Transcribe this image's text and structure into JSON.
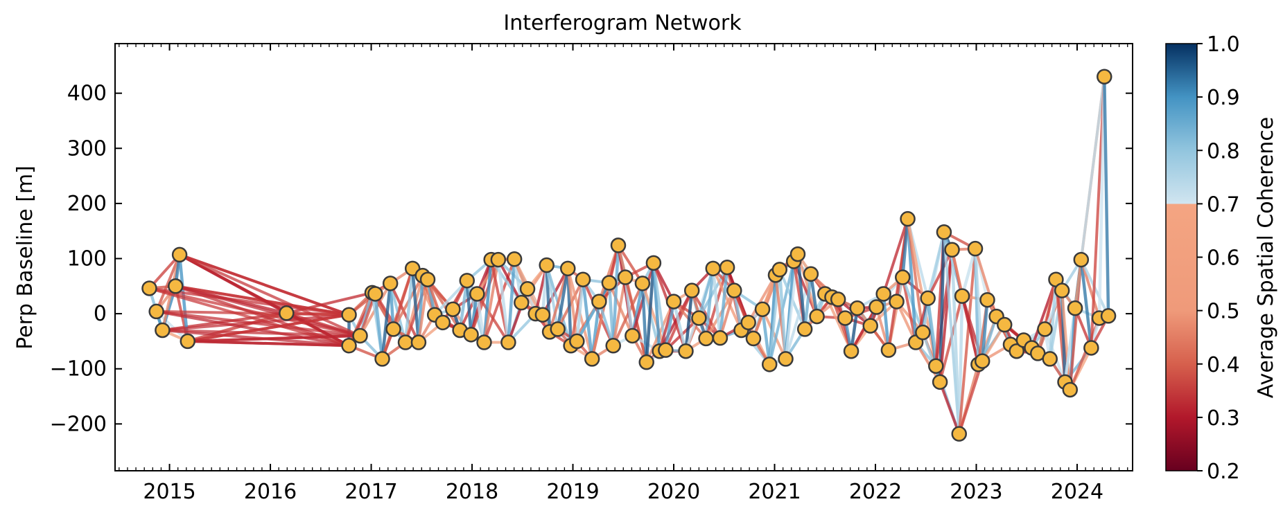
{
  "chart_data": {
    "type": "scatter",
    "title": "Interferogram Network",
    "xlabel": "",
    "ylabel": "Perp Baseline [m]",
    "xlim": [
      2014.46,
      2024.55
    ],
    "ylim": [
      -285,
      490
    ],
    "x_ticks": [
      2015,
      2016,
      2017,
      2018,
      2019,
      2020,
      2021,
      2022,
      2023,
      2024
    ],
    "x_tick_labels": [
      "2015",
      "2016",
      "2017",
      "2018",
      "2019",
      "2020",
      "2021",
      "2022",
      "2023",
      "2024"
    ],
    "y_ticks": [
      -200,
      -100,
      0,
      100,
      200,
      300,
      400
    ],
    "y_tick_labels": [
      "−200",
      "−100",
      "0",
      "100",
      "200",
      "300",
      "400"
    ],
    "grid": false,
    "colorbar": {
      "label": "Average Spatial Coherence",
      "range": [
        0.2,
        1.0
      ],
      "ticks": [
        0.2,
        0.3,
        0.4,
        0.5,
        0.6,
        0.7,
        0.8,
        0.9,
        1.0
      ],
      "tick_labels": [
        "0.2",
        "0.3",
        "0.4",
        "0.5",
        "0.6",
        "0.7",
        "0.8",
        "0.9",
        "1.0"
      ],
      "colormap": "RdBu (split at 0.7)"
    },
    "acquisitions": {
      "marker_fill": "#f5b841",
      "marker_edge": "#3a3a3a",
      "points": [
        {
          "date": 2014.8,
          "bperp": 46
        },
        {
          "date": 2014.87,
          "bperp": 4
        },
        {
          "date": 2014.93,
          "bperp": -30
        },
        {
          "date": 2015.06,
          "bperp": 50
        },
        {
          "date": 2015.1,
          "bperp": 107
        },
        {
          "date": 2015.18,
          "bperp": -50
        },
        {
          "date": 2016.16,
          "bperp": 1
        },
        {
          "date": 2016.78,
          "bperp": -2
        },
        {
          "date": 2016.78,
          "bperp": -58
        },
        {
          "date": 2016.89,
          "bperp": -40
        },
        {
          "date": 2017.01,
          "bperp": 38
        },
        {
          "date": 2017.04,
          "bperp": 36
        },
        {
          "date": 2017.11,
          "bperp": -82
        },
        {
          "date": 2017.19,
          "bperp": 55
        },
        {
          "date": 2017.22,
          "bperp": -28
        },
        {
          "date": 2017.34,
          "bperp": -52
        },
        {
          "date": 2017.41,
          "bperp": 82
        },
        {
          "date": 2017.47,
          "bperp": -52
        },
        {
          "date": 2017.51,
          "bperp": 69
        },
        {
          "date": 2017.56,
          "bperp": 62
        },
        {
          "date": 2017.63,
          "bperp": -2
        },
        {
          "date": 2017.71,
          "bperp": -16
        },
        {
          "date": 2017.81,
          "bperp": 8
        },
        {
          "date": 2017.88,
          "bperp": -30
        },
        {
          "date": 2017.95,
          "bperp": 60
        },
        {
          "date": 2017.99,
          "bperp": -38
        },
        {
          "date": 2018.05,
          "bperp": 36
        },
        {
          "date": 2018.12,
          "bperp": -52
        },
        {
          "date": 2018.19,
          "bperp": 98
        },
        {
          "date": 2018.26,
          "bperp": 98
        },
        {
          "date": 2018.36,
          "bperp": -52
        },
        {
          "date": 2018.42,
          "bperp": 99
        },
        {
          "date": 2018.49,
          "bperp": 20
        },
        {
          "date": 2018.55,
          "bperp": 45
        },
        {
          "date": 2018.63,
          "bperp": 0
        },
        {
          "date": 2018.7,
          "bperp": -2
        },
        {
          "date": 2018.74,
          "bperp": 88
        },
        {
          "date": 2018.77,
          "bperp": -33
        },
        {
          "date": 2018.85,
          "bperp": -28
        },
        {
          "date": 2018.95,
          "bperp": 82
        },
        {
          "date": 2018.98,
          "bperp": -58
        },
        {
          "date": 2019.04,
          "bperp": -50
        },
        {
          "date": 2019.1,
          "bperp": 62
        },
        {
          "date": 2019.19,
          "bperp": -82
        },
        {
          "date": 2019.26,
          "bperp": 22
        },
        {
          "date": 2019.36,
          "bperp": 56
        },
        {
          "date": 2019.4,
          "bperp": -58
        },
        {
          "date": 2019.45,
          "bperp": 124
        },
        {
          "date": 2019.52,
          "bperp": 66
        },
        {
          "date": 2019.59,
          "bperp": -40
        },
        {
          "date": 2019.69,
          "bperp": 55
        },
        {
          "date": 2019.73,
          "bperp": -88
        },
        {
          "date": 2019.8,
          "bperp": 92
        },
        {
          "date": 2019.86,
          "bperp": -68
        },
        {
          "date": 2019.92,
          "bperp": -66
        },
        {
          "date": 2020.0,
          "bperp": 22
        },
        {
          "date": 2020.12,
          "bperp": -68
        },
        {
          "date": 2020.18,
          "bperp": 42
        },
        {
          "date": 2020.25,
          "bperp": -8
        },
        {
          "date": 2020.32,
          "bperp": -45
        },
        {
          "date": 2020.39,
          "bperp": 82
        },
        {
          "date": 2020.46,
          "bperp": -44
        },
        {
          "date": 2020.53,
          "bperp": 84
        },
        {
          "date": 2020.6,
          "bperp": 42
        },
        {
          "date": 2020.67,
          "bperp": -30
        },
        {
          "date": 2020.74,
          "bperp": -16
        },
        {
          "date": 2020.79,
          "bperp": -45
        },
        {
          "date": 2020.88,
          "bperp": 8
        },
        {
          "date": 2020.95,
          "bperp": -92
        },
        {
          "date": 2021.01,
          "bperp": 70
        },
        {
          "date": 2021.05,
          "bperp": 80
        },
        {
          "date": 2021.11,
          "bperp": -82
        },
        {
          "date": 2021.19,
          "bperp": 95
        },
        {
          "date": 2021.23,
          "bperp": 108
        },
        {
          "date": 2021.3,
          "bperp": -28
        },
        {
          "date": 2021.36,
          "bperp": 72
        },
        {
          "date": 2021.42,
          "bperp": -5
        },
        {
          "date": 2021.5,
          "bperp": 36
        },
        {
          "date": 2021.57,
          "bperp": 30
        },
        {
          "date": 2021.63,
          "bperp": 26
        },
        {
          "date": 2021.7,
          "bperp": -8
        },
        {
          "date": 2021.76,
          "bperp": -68
        },
        {
          "date": 2021.82,
          "bperp": 10
        },
        {
          "date": 2021.95,
          "bperp": -22
        },
        {
          "date": 2022.01,
          "bperp": 12
        },
        {
          "date": 2022.08,
          "bperp": 36
        },
        {
          "date": 2022.13,
          "bperp": -66
        },
        {
          "date": 2022.21,
          "bperp": 22
        },
        {
          "date": 2022.27,
          "bperp": 66
        },
        {
          "date": 2022.32,
          "bperp": 172
        },
        {
          "date": 2022.4,
          "bperp": -52
        },
        {
          "date": 2022.47,
          "bperp": -34
        },
        {
          "date": 2022.52,
          "bperp": 28
        },
        {
          "date": 2022.6,
          "bperp": -95
        },
        {
          "date": 2022.64,
          "bperp": -124
        },
        {
          "date": 2022.68,
          "bperp": 148
        },
        {
          "date": 2022.76,
          "bperp": 116
        },
        {
          "date": 2022.83,
          "bperp": -218
        },
        {
          "date": 2022.86,
          "bperp": 32
        },
        {
          "date": 2022.99,
          "bperp": 118
        },
        {
          "date": 2023.02,
          "bperp": -92
        },
        {
          "date": 2023.06,
          "bperp": -86
        },
        {
          "date": 2023.11,
          "bperp": 25
        },
        {
          "date": 2023.2,
          "bperp": -5
        },
        {
          "date": 2023.28,
          "bperp": -20
        },
        {
          "date": 2023.34,
          "bperp": -56
        },
        {
          "date": 2023.4,
          "bperp": -68
        },
        {
          "date": 2023.47,
          "bperp": -48
        },
        {
          "date": 2023.55,
          "bperp": -62
        },
        {
          "date": 2023.61,
          "bperp": -72
        },
        {
          "date": 2023.68,
          "bperp": -28
        },
        {
          "date": 2023.73,
          "bperp": -82
        },
        {
          "date": 2023.79,
          "bperp": 62
        },
        {
          "date": 2023.85,
          "bperp": 42
        },
        {
          "date": 2023.88,
          "bperp": -124
        },
        {
          "date": 2023.93,
          "bperp": -138
        },
        {
          "date": 2023.98,
          "bperp": 10
        },
        {
          "date": 2024.04,
          "bperp": 98
        },
        {
          "date": 2024.14,
          "bperp": -62
        },
        {
          "date": 2024.22,
          "bperp": -8
        },
        {
          "date": 2024.27,
          "bperp": 430
        },
        {
          "date": 2024.31,
          "bperp": -4
        }
      ]
    },
    "connections_note": "Each line is an interferogram pair coloured by average spatial coherence; low-coherence (red) long pairs dominate 2015-2016, mixed elsewhere."
  }
}
